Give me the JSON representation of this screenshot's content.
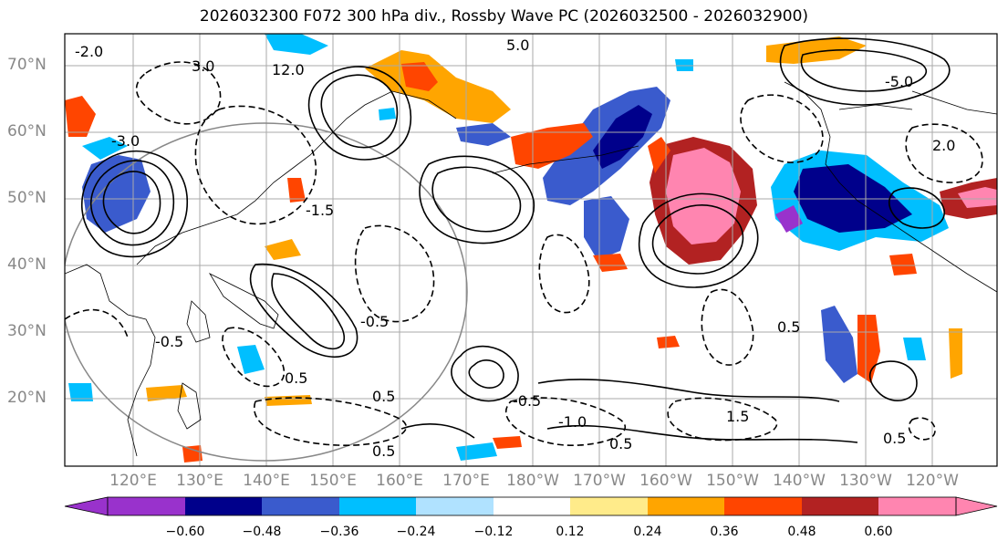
{
  "title": "2026032300 F072 300 hPa div., Rossby Wave PC (2026032500 - 2026032900)",
  "map": {
    "lat_labels": [
      "70°N",
      "60°N",
      "50°N",
      "40°N",
      "30°N",
      "20°N"
    ],
    "lon_labels": [
      "120°E",
      "130°E",
      "140°E",
      "150°E",
      "160°E",
      "170°E",
      "180°W",
      "170°W",
      "160°W",
      "150°W",
      "140°W",
      "130°W",
      "120°W"
    ],
    "contour_labels": [
      "-5.0",
      "-3.0",
      "-2.0",
      "-1.5",
      "-1.0",
      "-0.5",
      "0.5",
      "1.5",
      "2.0",
      "3.0",
      "5.0",
      "12.0"
    ],
    "colors": {
      "grid": "#aaaaaa",
      "coast": "#000000",
      "contour": "#000000"
    }
  },
  "colorbar": {
    "ticks": [
      "−0.60",
      "−0.48",
      "−0.36",
      "−0.24",
      "−0.12",
      "0.12",
      "0.24",
      "0.36",
      "0.48",
      "0.60"
    ],
    "colors": [
      "#9932cc",
      "#00008b",
      "#3a5bcd",
      "#00bfff",
      "#b0e2ff",
      "#ffffff",
      "#ffeb8a",
      "#ffa500",
      "#ff4500",
      "#b22222",
      "#ff85b0"
    ]
  }
}
